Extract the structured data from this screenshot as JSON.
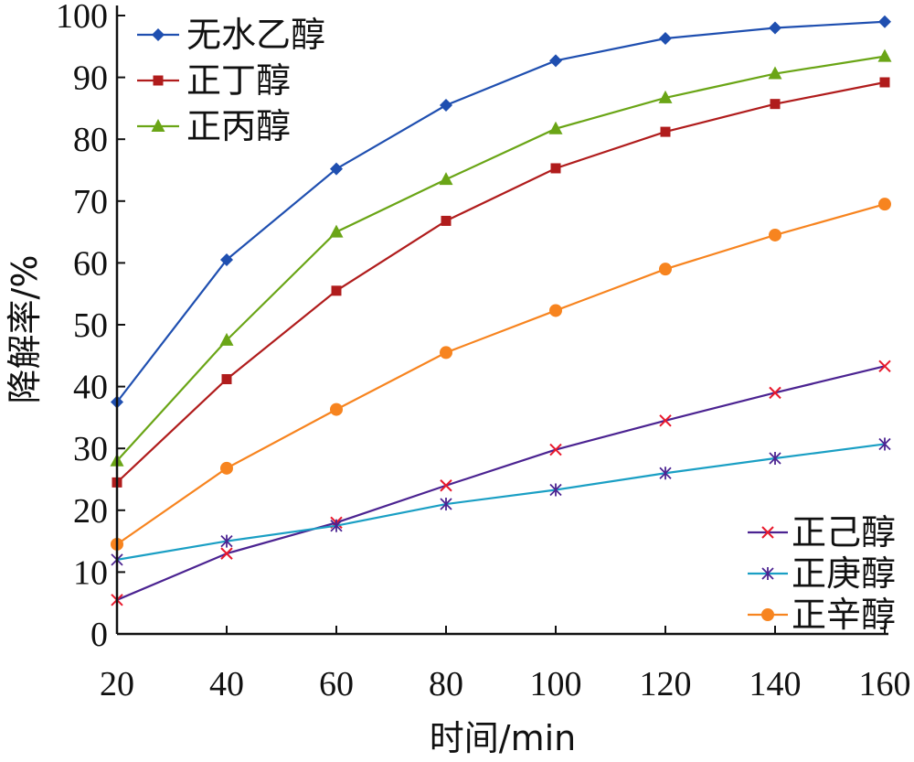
{
  "chart_data": {
    "type": "line",
    "xlabel": "时间/min",
    "ylabel": "降解率/%",
    "xlim": [
      20,
      160
    ],
    "ylim": [
      0,
      100
    ],
    "x_ticks": [
      "20",
      "40",
      "60",
      "80",
      "100",
      "120",
      "140",
      "160"
    ],
    "y_ticks": [
      "0",
      "10",
      "20",
      "30",
      "40",
      "50",
      "60",
      "70",
      "80",
      "90",
      "100"
    ],
    "x": [
      20,
      40,
      60,
      80,
      100,
      120,
      140,
      160
    ],
    "grid": false,
    "series": [
      {
        "name": "无水乙醇",
        "marker": "diamond",
        "color": "#1f4fb0",
        "values": [
          37.5,
          60.5,
          75.2,
          85.5,
          92.7,
          96.3,
          98.0,
          99.0
        ]
      },
      {
        "name": "正丁醇",
        "marker": "square",
        "color": "#b01c1c",
        "values": [
          24.5,
          41.2,
          55.5,
          66.8,
          75.3,
          81.2,
          85.7,
          89.2
        ]
      },
      {
        "name": "正丙醇",
        "marker": "triangle",
        "color": "#6aa516",
        "values": [
          28.0,
          47.5,
          65.0,
          73.5,
          81.7,
          86.7,
          90.6,
          93.4
        ]
      },
      {
        "name": "正己醇",
        "marker": "x",
        "color": "#e8192c",
        "line_color": "#4b2391",
        "values": [
          5.5,
          13.0,
          18.0,
          24.0,
          29.8,
          34.5,
          39.0,
          43.3
        ]
      },
      {
        "name": "正庚醇",
        "marker": "star",
        "color": "#4b2391",
        "line_color": "#1a9fc4",
        "values": [
          12.0,
          15.0,
          17.5,
          21.0,
          23.3,
          26.0,
          28.4,
          30.7
        ]
      },
      {
        "name": "正辛醇",
        "marker": "circle",
        "color": "#f7841f",
        "values": [
          14.5,
          26.8,
          36.3,
          45.5,
          52.3,
          59.0,
          64.5,
          69.5
        ]
      }
    ],
    "legends": [
      {
        "position": "top-left",
        "entries": [
          "无水乙醇",
          "正丁醇",
          "正丙醇"
        ]
      },
      {
        "position": "bottom-right",
        "entries": [
          "正己醇",
          "正庚醇",
          "正辛醇"
        ]
      }
    ]
  }
}
